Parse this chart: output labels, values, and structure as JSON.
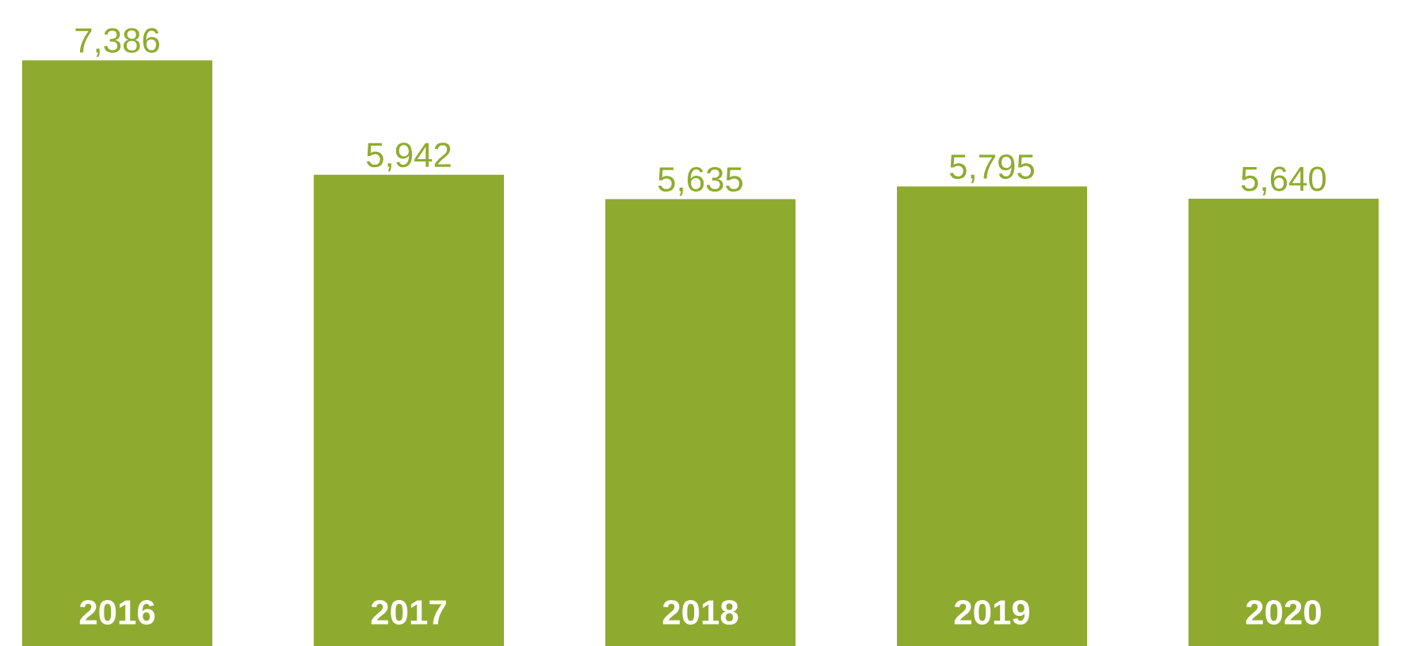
{
  "chart_data": {
    "type": "bar",
    "categories": [
      "2016",
      "2017",
      "2018",
      "2019",
      "2020"
    ],
    "values": [
      7386,
      5942,
      5635,
      5795,
      5640
    ],
    "value_labels": [
      "7,386",
      "5,942",
      "5,635",
      "5,795",
      "5,640"
    ],
    "color": "#8fab2f"
  }
}
